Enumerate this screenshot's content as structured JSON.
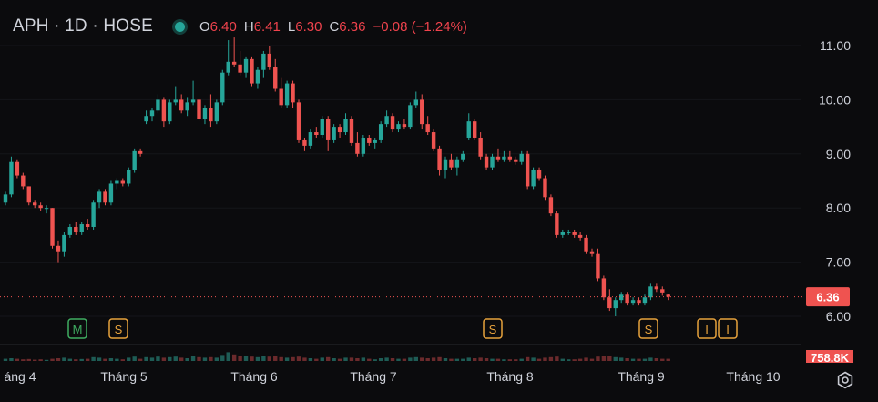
{
  "header": {
    "symbol": "APH · 1D · HOSE",
    "o_label": "O",
    "o_value": "6.40",
    "h_label": "H",
    "h_value": "6.41",
    "l_label": "L",
    "l_value": "6.30",
    "c_label": "C",
    "c_value": "6.36",
    "change": "−0.08 (−1.24%)",
    "status_icon": "market-status-dot"
  },
  "colors": {
    "up": "#26a69a",
    "down": "#ef5350",
    "background": "#0b0b0d",
    "event_s": "#e8a33d",
    "event_m": "#3fae62"
  },
  "chart_data": {
    "type": "candlestick",
    "ylim": [
      5.8,
      11.25
    ],
    "yticks": [
      "11.00",
      "10.00",
      "9.00",
      "8.00",
      "7.00",
      "6.00"
    ],
    "xticks": [
      "áng 4",
      "Tháng 5",
      "Tháng 6",
      "Tháng 7",
      "Tháng 8",
      "Tháng 9",
      "Tháng 10"
    ],
    "last_price": "6.36",
    "volume_label": "758.8K",
    "events": [
      {
        "label": "M",
        "kind": "m"
      },
      {
        "label": "S",
        "kind": "s"
      },
      {
        "label": "S",
        "kind": "s"
      },
      {
        "label": "S",
        "kind": "s"
      },
      {
        "label": "I",
        "kind": "s"
      },
      {
        "label": "I",
        "kind": "s"
      }
    ],
    "candles": [
      [
        8.1,
        8.3,
        8.05,
        8.25
      ],
      [
        8.25,
        8.95,
        8.2,
        8.85
      ],
      [
        8.85,
        8.9,
        8.55,
        8.6
      ],
      [
        8.6,
        8.65,
        8.35,
        8.4
      ],
      [
        8.4,
        8.4,
        8.05,
        8.1
      ],
      [
        8.1,
        8.15,
        8.0,
        8.05
      ],
      [
        8.05,
        8.1,
        7.95,
        8.0
      ],
      [
        8.0,
        8.05,
        7.9,
        8.0
      ],
      [
        8.0,
        8.0,
        7.25,
        7.3
      ],
      [
        7.3,
        7.4,
        7.0,
        7.2
      ],
      [
        7.2,
        7.55,
        7.1,
        7.5
      ],
      [
        7.5,
        7.7,
        7.45,
        7.65
      ],
      [
        7.65,
        7.75,
        7.5,
        7.55
      ],
      [
        7.55,
        7.75,
        7.5,
        7.7
      ],
      [
        7.7,
        7.8,
        7.6,
        7.65
      ],
      [
        7.65,
        8.15,
        7.6,
        8.1
      ],
      [
        8.1,
        8.35,
        8.0,
        8.3
      ],
      [
        8.3,
        8.35,
        8.05,
        8.1
      ],
      [
        8.1,
        8.5,
        8.05,
        8.45
      ],
      [
        8.45,
        8.55,
        8.35,
        8.5
      ],
      [
        8.5,
        8.55,
        8.4,
        8.45
      ],
      [
        8.45,
        8.75,
        8.4,
        8.7
      ],
      [
        8.7,
        9.1,
        8.65,
        9.05
      ],
      [
        9.05,
        9.1,
        8.95,
        9.0
      ],
      [
        9.6,
        9.8,
        9.55,
        9.7
      ],
      [
        9.7,
        9.85,
        9.6,
        9.8
      ],
      [
        9.8,
        10.1,
        9.75,
        10.0
      ],
      [
        10.0,
        10.05,
        9.5,
        9.6
      ],
      [
        9.6,
        10.0,
        9.55,
        9.95
      ],
      [
        9.95,
        10.25,
        9.9,
        10.0
      ],
      [
        10.0,
        10.1,
        9.75,
        9.8
      ],
      [
        9.8,
        10.05,
        9.7,
        9.95
      ],
      [
        9.95,
        10.35,
        9.9,
        10.0
      ],
      [
        10.0,
        10.05,
        9.6,
        9.65
      ],
      [
        9.65,
        9.9,
        9.55,
        9.85
      ],
      [
        9.85,
        10.1,
        9.5,
        9.6
      ],
      [
        9.6,
        10.0,
        9.55,
        9.95
      ],
      [
        9.95,
        10.55,
        9.9,
        10.5
      ],
      [
        10.5,
        11.1,
        10.45,
        10.7
      ],
      [
        10.7,
        11.15,
        10.6,
        10.65
      ],
      [
        10.65,
        10.9,
        10.45,
        10.5
      ],
      [
        10.5,
        10.8,
        10.4,
        10.75
      ],
      [
        10.75,
        10.8,
        10.25,
        10.3
      ],
      [
        10.3,
        10.6,
        10.2,
        10.55
      ],
      [
        10.55,
        10.9,
        10.4,
        10.85
      ],
      [
        10.85,
        11.0,
        10.55,
        10.6
      ],
      [
        10.6,
        10.75,
        10.15,
        10.2
      ],
      [
        10.2,
        10.4,
        9.85,
        9.9
      ],
      [
        9.9,
        10.35,
        9.85,
        10.3
      ],
      [
        10.3,
        10.35,
        9.85,
        9.95
      ],
      [
        9.95,
        10.0,
        9.2,
        9.25
      ],
      [
        9.25,
        9.3,
        9.05,
        9.15
      ],
      [
        9.15,
        9.45,
        9.1,
        9.4
      ],
      [
        9.4,
        9.5,
        9.3,
        9.35
      ],
      [
        9.35,
        9.7,
        9.3,
        9.65
      ],
      [
        9.65,
        9.7,
        9.05,
        9.25
      ],
      [
        9.25,
        9.55,
        9.2,
        9.5
      ],
      [
        9.5,
        9.55,
        9.3,
        9.4
      ],
      [
        9.4,
        9.75,
        9.35,
        9.65
      ],
      [
        9.65,
        9.7,
        9.15,
        9.2
      ],
      [
        9.2,
        9.4,
        8.95,
        9.0
      ],
      [
        9.0,
        9.35,
        8.95,
        9.3
      ],
      [
        9.3,
        9.35,
        9.15,
        9.2
      ],
      [
        9.2,
        9.3,
        9.1,
        9.25
      ],
      [
        9.25,
        9.6,
        9.2,
        9.55
      ],
      [
        9.55,
        9.8,
        9.5,
        9.7
      ],
      [
        9.7,
        9.75,
        9.4,
        9.45
      ],
      [
        9.45,
        9.6,
        9.4,
        9.55
      ],
      [
        9.55,
        9.65,
        9.45,
        9.5
      ],
      [
        9.5,
        9.95,
        9.45,
        9.9
      ],
      [
        9.9,
        10.15,
        9.85,
        10.0
      ],
      [
        10.0,
        10.1,
        9.45,
        9.55
      ],
      [
        9.55,
        9.7,
        9.35,
        9.4
      ],
      [
        9.4,
        9.45,
        9.05,
        9.1
      ],
      [
        9.1,
        9.15,
        8.6,
        8.7
      ],
      [
        8.7,
        8.95,
        8.55,
        8.9
      ],
      [
        8.9,
        9.0,
        8.7,
        8.75
      ],
      [
        8.75,
        8.95,
        8.6,
        8.9
      ],
      [
        8.9,
        9.05,
        8.85,
        9.0
      ],
      [
        9.3,
        9.75,
        9.25,
        9.6
      ],
      [
        9.6,
        9.65,
        9.25,
        9.3
      ],
      [
        9.3,
        9.4,
        8.9,
        8.95
      ],
      [
        8.95,
        9.0,
        8.7,
        8.75
      ],
      [
        8.75,
        9.0,
        8.7,
        8.95
      ],
      [
        8.95,
        9.1,
        8.85,
        8.9
      ],
      [
        8.9,
        9.05,
        8.85,
        8.95
      ],
      [
        8.95,
        9.05,
        8.85,
        8.9
      ],
      [
        8.9,
        8.95,
        8.8,
        8.85
      ],
      [
        8.85,
        9.05,
        8.8,
        9.0
      ],
      [
        9.0,
        9.05,
        8.35,
        8.4
      ],
      [
        8.4,
        8.75,
        8.35,
        8.7
      ],
      [
        8.7,
        8.75,
        8.5,
        8.55
      ],
      [
        8.55,
        8.6,
        8.15,
        8.2
      ],
      [
        8.2,
        8.25,
        7.85,
        7.9
      ],
      [
        7.9,
        7.95,
        7.45,
        7.5
      ],
      [
        7.5,
        7.6,
        7.45,
        7.55
      ],
      [
        7.55,
        7.6,
        7.5,
        7.55
      ],
      [
        7.55,
        7.6,
        7.45,
        7.5
      ],
      [
        7.5,
        7.55,
        7.4,
        7.45
      ],
      [
        7.45,
        7.5,
        7.15,
        7.2
      ],
      [
        7.2,
        7.25,
        7.1,
        7.15
      ],
      [
        7.15,
        7.25,
        6.65,
        6.7
      ],
      [
        6.7,
        6.75,
        6.3,
        6.35
      ],
      [
        6.35,
        6.5,
        6.1,
        6.15
      ],
      [
        6.15,
        6.35,
        6.0,
        6.3
      ],
      [
        6.3,
        6.45,
        6.25,
        6.4
      ],
      [
        6.4,
        6.45,
        6.2,
        6.25
      ],
      [
        6.25,
        6.35,
        6.2,
        6.3
      ],
      [
        6.3,
        6.35,
        6.2,
        6.25
      ],
      [
        6.25,
        6.4,
        6.2,
        6.35
      ],
      [
        6.35,
        6.6,
        6.3,
        6.55
      ],
      [
        6.55,
        6.6,
        6.45,
        6.5
      ],
      [
        6.5,
        6.55,
        6.38,
        6.44
      ],
      [
        6.4,
        6.41,
        6.3,
        6.36
      ]
    ],
    "volumes": [
      0.2,
      0.25,
      0.2,
      0.15,
      0.18,
      0.12,
      0.15,
      0.1,
      0.2,
      0.25,
      0.3,
      0.2,
      0.15,
      0.18,
      0.2,
      0.35,
      0.3,
      0.2,
      0.25,
      0.2,
      0.15,
      0.3,
      0.4,
      0.2,
      0.35,
      0.3,
      0.4,
      0.3,
      0.35,
      0.4,
      0.3,
      0.25,
      0.45,
      0.35,
      0.3,
      0.35,
      0.3,
      0.55,
      0.8,
      0.6,
      0.5,
      0.45,
      0.4,
      0.35,
      0.5,
      0.4,
      0.45,
      0.35,
      0.3,
      0.35,
      0.4,
      0.3,
      0.25,
      0.2,
      0.3,
      0.35,
      0.25,
      0.2,
      0.3,
      0.3,
      0.25,
      0.3,
      0.2,
      0.15,
      0.25,
      0.3,
      0.25,
      0.2,
      0.2,
      0.3,
      0.35,
      0.3,
      0.25,
      0.3,
      0.35,
      0.25,
      0.2,
      0.2,
      0.2,
      0.3,
      0.25,
      0.3,
      0.25,
      0.2,
      0.2,
      0.15,
      0.15,
      0.15,
      0.2,
      0.35,
      0.3,
      0.2,
      0.3,
      0.35,
      0.4,
      0.2,
      0.15,
      0.15,
      0.2,
      0.3,
      0.2,
      0.4,
      0.5,
      0.45,
      0.35,
      0.3,
      0.25,
      0.2,
      0.2,
      0.2,
      0.3,
      0.25,
      0.2,
      0.2
    ]
  }
}
